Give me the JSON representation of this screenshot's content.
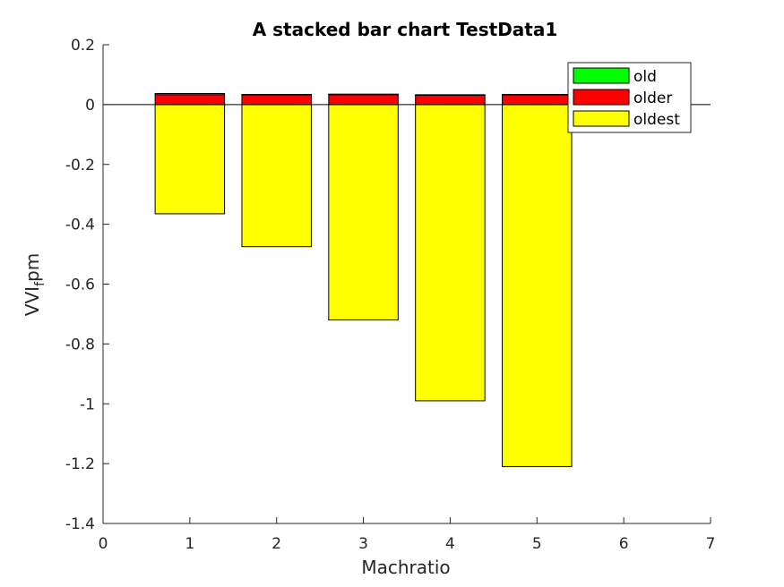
{
  "chart_data": {
    "type": "bar",
    "stacked": true,
    "title": "A stacked bar chart TestData1",
    "xlabel": "Machratio",
    "ylabel": {
      "main": "VVI",
      "subscript": "f",
      "rest": "pm"
    },
    "xlim": [
      0,
      7
    ],
    "ylim": [
      -1.4,
      0.2
    ],
    "xticks": [
      "0",
      "1",
      "2",
      "3",
      "4",
      "5",
      "6",
      "7"
    ],
    "yticks": [
      "0.2",
      "0",
      "-0.2",
      "-0.4",
      "-0.6",
      "-0.8",
      "-1",
      "-1.2",
      "-1.4"
    ],
    "x": [
      1,
      2,
      3,
      4,
      5
    ],
    "series": [
      {
        "name": "oldest",
        "color": "#ffff00",
        "values": [
          -0.365,
          -0.475,
          -0.72,
          -0.99,
          -1.21
        ]
      },
      {
        "name": "older",
        "color": "#ff0000",
        "values": [
          0.033,
          0.033,
          0.033,
          0.031,
          0.033
        ]
      },
      {
        "name": "old",
        "color": "#00ff00",
        "values": [
          0.004,
          0.001,
          0.002,
          0.002,
          0.001
        ]
      }
    ],
    "legend_order": [
      "old",
      "older",
      "oldest"
    ],
    "legend_position": "top-right",
    "grid": false
  }
}
